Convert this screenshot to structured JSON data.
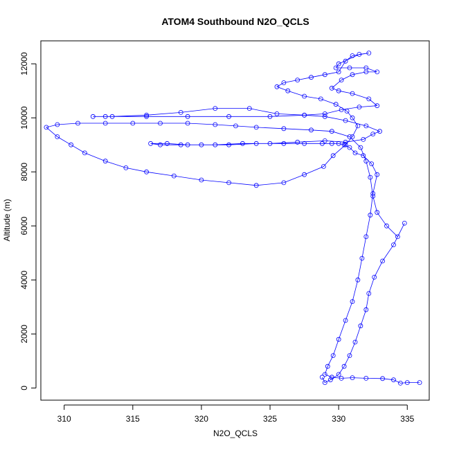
{
  "chart_data": {
    "type": "scatter",
    "title": "ATOM4 Southbound N2O_QCLS",
    "xlabel": "N2O_QCLS",
    "ylabel": "Altitude (m)",
    "xlim": [
      308.3,
      336.6
    ],
    "ylim": [
      -450,
      12850
    ],
    "x_ticks": [
      310,
      315,
      320,
      325,
      330,
      335
    ],
    "y_ticks": [
      0,
      2000,
      4000,
      6000,
      8000,
      10000,
      12000
    ],
    "grid": false,
    "legend": "none",
    "marker": "open-circle",
    "connect_points": true,
    "series": [
      {
        "color": "#0000ff",
        "points": [
          [
            335.9,
            200
          ],
          [
            335.0,
            200
          ],
          [
            334.5,
            180
          ],
          [
            334.0,
            300
          ],
          [
            333.2,
            350
          ],
          [
            332.0,
            360
          ],
          [
            331.0,
            380
          ],
          [
            330.2,
            360
          ],
          [
            329.5,
            400
          ],
          [
            329.0,
            500
          ],
          [
            329.2,
            800
          ],
          [
            329.6,
            1200
          ],
          [
            330.0,
            1800
          ],
          [
            330.5,
            2500
          ],
          [
            331.0,
            3200
          ],
          [
            331.4,
            4000
          ],
          [
            331.7,
            4800
          ],
          [
            332.0,
            5600
          ],
          [
            332.3,
            6400
          ],
          [
            332.5,
            7200
          ],
          [
            332.8,
            7900
          ],
          [
            332.4,
            8300
          ],
          [
            331.8,
            8600
          ],
          [
            331.2,
            8700
          ],
          [
            330.8,
            8900
          ],
          [
            330.4,
            9000
          ],
          [
            330.0,
            9050
          ],
          [
            329.5,
            9050
          ],
          [
            328.8,
            9050
          ],
          [
            327.5,
            9050
          ],
          [
            326.0,
            9050
          ],
          [
            324.0,
            9050
          ],
          [
            322.0,
            9000
          ],
          [
            320.0,
            9000
          ],
          [
            318.5,
            9000
          ],
          [
            317.0,
            9000
          ],
          [
            316.3,
            9050
          ],
          [
            317.5,
            9050
          ],
          [
            319.0,
            9000
          ],
          [
            321.0,
            9000
          ],
          [
            323.0,
            9050
          ],
          [
            325.0,
            9050
          ],
          [
            327.0,
            9100
          ],
          [
            329.0,
            9150
          ],
          [
            330.5,
            9100
          ],
          [
            331.8,
            9200
          ],
          [
            332.5,
            9400
          ],
          [
            333.0,
            9500
          ],
          [
            332.0,
            9700
          ],
          [
            330.5,
            9900
          ],
          [
            329.0,
            10050
          ],
          [
            327.5,
            10100
          ],
          [
            325.0,
            10050
          ],
          [
            322.0,
            10050
          ],
          [
            319.0,
            10050
          ],
          [
            316.0,
            10050
          ],
          [
            313.0,
            10050
          ],
          [
            312.1,
            10050
          ],
          [
            313.5,
            10050
          ],
          [
            316.0,
            10100
          ],
          [
            318.5,
            10200
          ],
          [
            321.0,
            10350
          ],
          [
            323.5,
            10350
          ],
          [
            325.5,
            10150
          ],
          [
            327.5,
            10100
          ],
          [
            329.0,
            10150
          ],
          [
            330.2,
            10300
          ],
          [
            331.5,
            10400
          ],
          [
            332.8,
            10450
          ],
          [
            332.2,
            10700
          ],
          [
            331.0,
            10900
          ],
          [
            330.0,
            11000
          ],
          [
            329.5,
            11100
          ],
          [
            330.2,
            11400
          ],
          [
            331.0,
            11600
          ],
          [
            332.0,
            11700
          ],
          [
            332.8,
            11700
          ],
          [
            332.0,
            11850
          ],
          [
            330.8,
            11850
          ],
          [
            329.8,
            11850
          ],
          [
            330.0,
            12000
          ],
          [
            331.5,
            12350
          ],
          [
            332.2,
            12400
          ],
          [
            331.0,
            12300
          ],
          [
            330.5,
            12100
          ],
          [
            330.0,
            11700
          ],
          [
            329.0,
            11600
          ],
          [
            328.0,
            11500
          ],
          [
            327.0,
            11400
          ],
          [
            326.0,
            11300
          ],
          [
            325.5,
            11150
          ],
          [
            326.3,
            11000
          ],
          [
            327.5,
            10800
          ],
          [
            328.7,
            10700
          ],
          [
            329.8,
            10500
          ],
          [
            330.6,
            10250
          ],
          [
            331.0,
            10000
          ],
          [
            331.4,
            9700
          ],
          [
            331.0,
            9300
          ],
          [
            330.5,
            9000
          ],
          [
            329.6,
            8600
          ],
          [
            328.9,
            8200
          ],
          [
            327.5,
            7900
          ],
          [
            326.0,
            7600
          ],
          [
            324.0,
            7500
          ],
          [
            322.0,
            7600
          ],
          [
            320.0,
            7700
          ],
          [
            318.0,
            7850
          ],
          [
            316.0,
            8000
          ],
          [
            314.5,
            8150
          ],
          [
            313.0,
            8400
          ],
          [
            311.5,
            8700
          ],
          [
            310.5,
            9000
          ],
          [
            309.5,
            9300
          ],
          [
            308.7,
            9650
          ],
          [
            309.5,
            9750
          ],
          [
            311.0,
            9800
          ],
          [
            313.0,
            9800
          ],
          [
            315.0,
            9800
          ],
          [
            317.0,
            9800
          ],
          [
            319.0,
            9800
          ],
          [
            321.0,
            9750
          ],
          [
            322.5,
            9700
          ],
          [
            324.0,
            9650
          ],
          [
            326.0,
            9600
          ],
          [
            328.0,
            9550
          ],
          [
            329.5,
            9500
          ],
          [
            330.8,
            9300
          ],
          [
            331.6,
            8900
          ],
          [
            332.0,
            8400
          ],
          [
            332.3,
            7800
          ],
          [
            332.5,
            7100
          ],
          [
            332.8,
            6500
          ],
          [
            333.5,
            6000
          ],
          [
            334.3,
            5600
          ],
          [
            334.8,
            6100
          ],
          [
            334.0,
            5300
          ],
          [
            333.2,
            4700
          ],
          [
            332.6,
            4100
          ],
          [
            332.2,
            3500
          ],
          [
            332.0,
            2900
          ],
          [
            331.6,
            2300
          ],
          [
            331.2,
            1700
          ],
          [
            330.8,
            1200
          ],
          [
            330.4,
            800
          ],
          [
            330.0,
            500
          ],
          [
            329.4,
            300
          ],
          [
            329.0,
            200
          ],
          [
            328.8,
            400
          ]
        ]
      }
    ]
  }
}
